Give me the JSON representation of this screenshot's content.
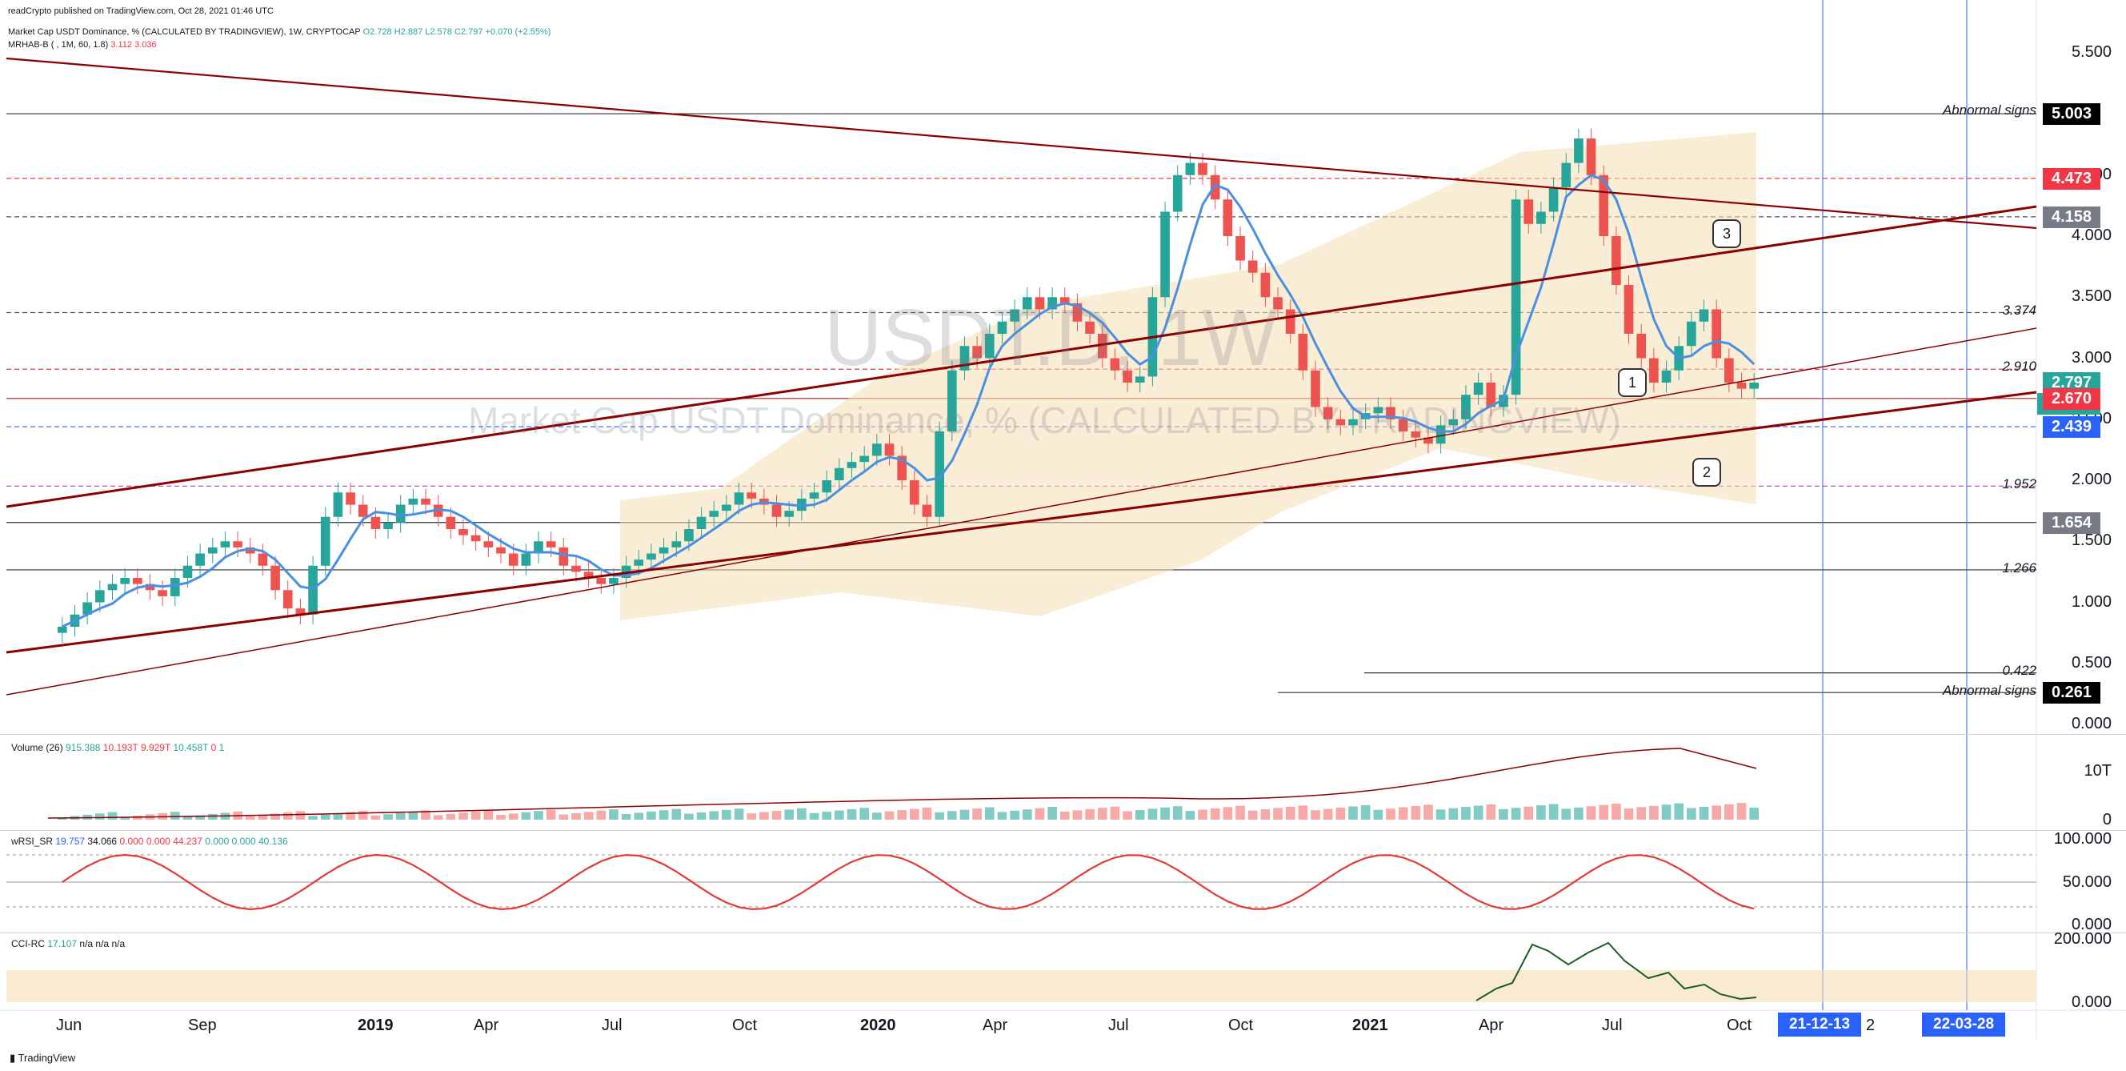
{
  "header": {
    "published": "readCrypto published on TradingView.com, Oct 28, 2021 01:46 UTC",
    "series_line_prefix": "Market Cap USDT Dominance, % (CALCULATED BY TRADINGVIEW), 1W, CRYPTOCAP",
    "ohlc": "O2.728 H2.887 L2.578 C2.797 +0.070 (+2.55%)",
    "indicator_line": "MRHAB-B ( , 1M, 60, 1.8)",
    "indicator_values": "3.112 3.036"
  },
  "watermark": {
    "symbol": "USDT.D, 1W",
    "description": "Market Cap USDT Dominance, % (CALCULATED BY TRADINGVIEW)"
  },
  "price_axis": {
    "ticks": [
      "5.500",
      "4.500",
      "4.000",
      "3.500",
      "3.000",
      "2.500",
      "2.000",
      "1.500",
      "1.000",
      "0.500",
      "0.000"
    ],
    "badges": [
      {
        "value": "5.003",
        "color": "#000000"
      },
      {
        "value": "4.473",
        "color": "#f23645"
      },
      {
        "value": "4.158",
        "color": "#787b86"
      },
      {
        "value": "2.797",
        "color": "#26a69a"
      },
      {
        "value": "3d 23h",
        "color": "#26a69a"
      },
      {
        "value": "2.670",
        "color": "#f23645"
      },
      {
        "value": "2.439",
        "color": "#2962ff"
      },
      {
        "value": "1.654",
        "color": "#787b86"
      },
      {
        "value": "0.261",
        "color": "#000000"
      }
    ]
  },
  "levels": {
    "abnormal_top": "Abnormal signs",
    "l3374": "3.374",
    "l2910": "2.910",
    "l1952": "1.952",
    "l1266": "1.266",
    "l0422": "0.422",
    "abnormal_bottom": "Abnormal signs"
  },
  "callouts": [
    "1",
    "2",
    "3"
  ],
  "time_axis": {
    "labels": [
      "Jun",
      "Sep",
      "2019",
      "Apr",
      "Jul",
      "Oct",
      "2020",
      "Apr",
      "Jul",
      "Oct",
      "2021",
      "Apr",
      "Jul",
      "Oct"
    ],
    "date_markers": [
      "21-12-13",
      "22-03-28"
    ],
    "after_marker": "2"
  },
  "volume_pane": {
    "label": "Volume (26)",
    "values": [
      "915.388",
      "10.193T",
      "9.929T",
      "10.458T",
      "0",
      "1"
    ],
    "ticks": [
      "10T",
      "0"
    ]
  },
  "rsi_pane": {
    "label": "wRSI_SR",
    "values": [
      "19.757",
      "34.066",
      "0.000",
      "0.000",
      "44.237",
      "0.000",
      "0.000",
      "40.136"
    ],
    "ticks": [
      "100.000",
      "50.000",
      "0.000"
    ]
  },
  "cci_pane": {
    "label": "CCI-RC",
    "values": [
      "17.107",
      "n/a",
      "n/a",
      "n/a"
    ],
    "ticks": [
      "200.000",
      "0.000"
    ]
  },
  "footer": {
    "brand": "TradingView"
  },
  "colors": {
    "up": "#26a69a",
    "down": "#ef5350",
    "trend": "#8b0000",
    "ma_blue": "#4a90e2",
    "band": "#f5deb3",
    "marker_line": "#2962ff"
  },
  "chart_data": {
    "type": "candlestick",
    "title": "Market Cap USDT Dominance, % (CALCULATED BY TRADINGVIEW), 1W, CRYPTOCAP",
    "ylim": [
      0,
      5.6
    ],
    "x_labels": [
      "Jun",
      "Sep",
      "2019",
      "Apr",
      "Jul",
      "Oct",
      "2020",
      "Apr",
      "Jul",
      "Oct",
      "2021",
      "Apr",
      "Jul",
      "Oct"
    ],
    "close_approx": [
      0.8,
      0.9,
      1.0,
      1.1,
      1.15,
      1.2,
      1.15,
      1.1,
      1.05,
      1.2,
      1.3,
      1.4,
      1.45,
      1.5,
      1.45,
      1.4,
      1.3,
      1.1,
      0.95,
      0.9,
      1.3,
      1.7,
      1.9,
      1.8,
      1.7,
      1.6,
      1.65,
      1.8,
      1.85,
      1.8,
      1.7,
      1.6,
      1.55,
      1.5,
      1.45,
      1.4,
      1.3,
      1.4,
      1.5,
      1.45,
      1.3,
      1.25,
      1.2,
      1.15,
      1.2,
      1.3,
      1.35,
      1.4,
      1.45,
      1.5,
      1.6,
      1.7,
      1.75,
      1.8,
      1.9,
      1.85,
      1.8,
      1.7,
      1.75,
      1.85,
      1.9,
      2.0,
      2.1,
      2.15,
      2.2,
      2.3,
      2.2,
      2.0,
      1.8,
      1.7,
      2.4,
      2.9,
      3.1,
      3.0,
      3.2,
      3.3,
      3.4,
      3.5,
      3.4,
      3.5,
      3.45,
      3.3,
      3.2,
      3.0,
      2.9,
      2.8,
      2.85,
      3.5,
      4.2,
      4.5,
      4.6,
      4.5,
      4.3,
      4.0,
      3.8,
      3.7,
      3.5,
      3.4,
      3.2,
      2.9,
      2.6,
      2.5,
      2.45,
      2.5,
      2.55,
      2.6,
      2.5,
      2.4,
      2.35,
      2.3,
      2.45,
      2.5,
      2.7,
      2.8,
      2.6,
      2.7,
      4.3,
      4.1,
      4.2,
      4.4,
      4.6,
      4.8,
      4.5,
      4.0,
      3.6,
      3.2,
      3.0,
      2.8,
      2.9,
      3.1,
      3.3,
      3.4,
      3.0,
      2.8,
      2.75,
      2.8
    ],
    "support_resistance_levels": [
      5.003,
      4.473,
      4.158,
      3.374,
      2.91,
      2.67,
      2.439,
      1.952,
      1.654,
      1.266,
      0.422,
      0.261
    ],
    "last": {
      "open": 2.728,
      "high": 2.887,
      "low": 2.578,
      "close": 2.797,
      "change": 0.07,
      "change_pct": 2.55
    }
  }
}
